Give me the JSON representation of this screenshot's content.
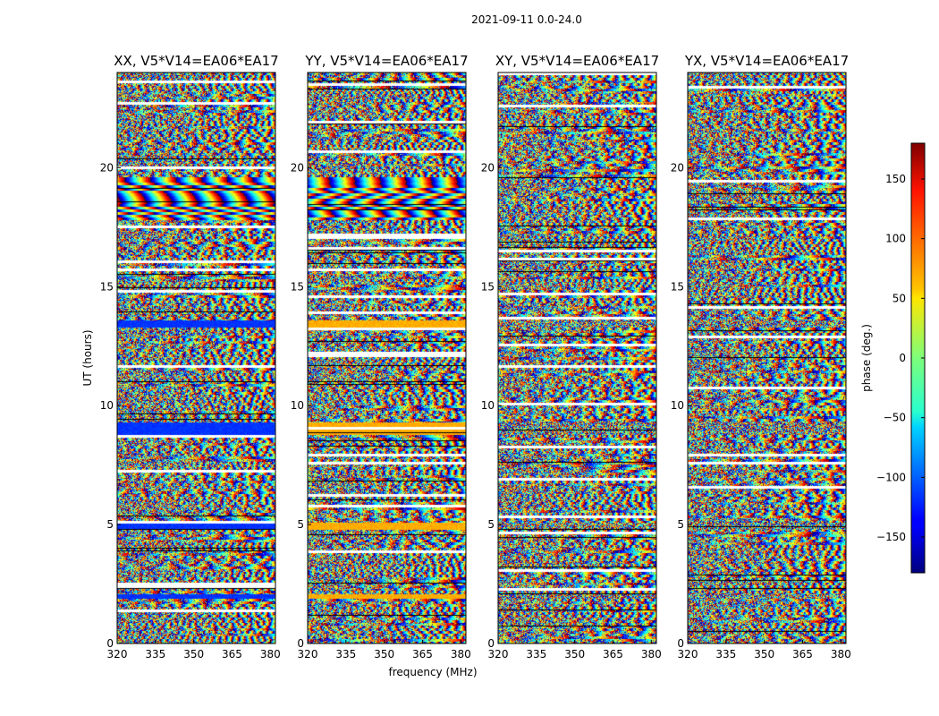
{
  "chart_data": {
    "type": "heatmap",
    "suptitle": "2021-09-11 0.0-24.0",
    "xlabel": "frequency (MHz)",
    "ylabel": "UT (hours)",
    "xlim": [
      320,
      382
    ],
    "ylim": [
      0,
      24
    ],
    "xticks": [
      "320",
      "335",
      "350",
      "365",
      "380"
    ],
    "xtick_values": [
      320,
      335,
      350,
      365,
      380
    ],
    "yticks": [
      "0",
      "5",
      "10",
      "15",
      "20"
    ],
    "ytick_values": [
      0,
      5,
      10,
      15,
      20
    ],
    "panels": [
      {
        "title": "XX, V5*V14=EA06*EA17"
      },
      {
        "title": "YY, V5*V14=EA06*EA17"
      },
      {
        "title": "XY, V5*V14=EA06*EA17"
      },
      {
        "title": "YX, V5*V14=EA06*EA17"
      }
    ],
    "colorbar": {
      "label": "phase (deg.)",
      "range": [
        -180,
        180
      ],
      "ticks": [
        "150",
        "100",
        "50",
        "0",
        "−50",
        "−100",
        "−150"
      ],
      "tick_values": [
        150,
        100,
        50,
        0,
        -50,
        -100,
        -150
      ],
      "colormap": "jet"
    }
  }
}
